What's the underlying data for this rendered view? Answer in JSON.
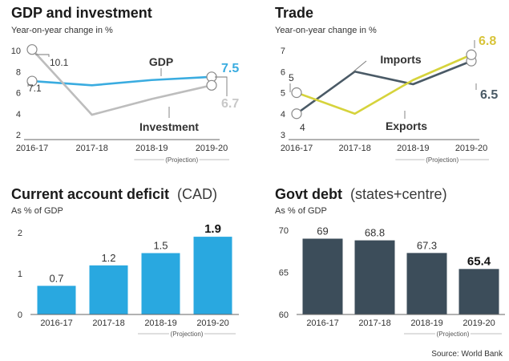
{
  "source": "Source: World Bank",
  "colors": {
    "gdp": "#3aace0",
    "investment": "#bdbdbd",
    "imports": "#4a5a66",
    "exports": "#d6d33c",
    "cad_bar": "#29a8e0",
    "debt_bar": "#3c4d5a",
    "highlight_gdp": "#3aace0",
    "highlight_investment": "#c8c8c8",
    "highlight_exports": "#d8c43a",
    "highlight_imports": "#4a5a66"
  },
  "chart_data": [
    {
      "type": "line",
      "title": "GDP and investment",
      "subtitle": "Year-on-year change in %",
      "categories": [
        "2016-17",
        "2017-18",
        "2018-19",
        "2019-20"
      ],
      "projection_label": "(Projection)",
      "ylim": [
        2,
        10
      ],
      "yticks": [
        2,
        4,
        6,
        8,
        10
      ],
      "series": [
        {
          "name": "GDP",
          "values": [
            7.1,
            6.7,
            7.2,
            7.5
          ],
          "start_label": "7.1",
          "end_label": "7.5"
        },
        {
          "name": "Investment",
          "values": [
            10.1,
            3.9,
            5.4,
            6.7
          ],
          "start_label": "10.1",
          "end_label": "6.7"
        }
      ]
    },
    {
      "type": "line",
      "title": "Trade",
      "subtitle": "Year-on-year change in %",
      "categories": [
        "2016-17",
        "2017-18",
        "2018-19",
        "2019-20"
      ],
      "projection_label": "(Projection)",
      "ylim": [
        3,
        7
      ],
      "yticks": [
        3,
        4,
        5,
        6,
        7
      ],
      "series": [
        {
          "name": "Imports",
          "values": [
            4.0,
            6.0,
            5.4,
            6.5
          ],
          "start_label": "4",
          "end_label": "6.5"
        },
        {
          "name": "Exports",
          "values": [
            5.0,
            4.0,
            5.6,
            6.8
          ],
          "start_label": "5",
          "end_label": "6.8"
        }
      ]
    },
    {
      "type": "bar",
      "title": "Current account deficit",
      "title_suffix": "(CAD)",
      "subtitle": "As % of GDP",
      "categories": [
        "2016-17",
        "2017-18",
        "2018-19",
        "2019-20"
      ],
      "projection_label": "(Projection)",
      "values": [
        0.7,
        1.2,
        1.5,
        1.9
      ],
      "value_labels": [
        "0.7",
        "1.2",
        "1.5",
        "1.9"
      ],
      "ylim": [
        0,
        2
      ],
      "yticks": [
        0,
        1,
        2
      ]
    },
    {
      "type": "bar",
      "title": "Govt debt",
      "title_suffix": "(states+centre)",
      "subtitle": "As % of GDP",
      "categories": [
        "2016-17",
        "2017-18",
        "2018-19",
        "2019-20"
      ],
      "projection_label": "(Projection)",
      "values": [
        69,
        68.8,
        67.3,
        65.4
      ],
      "value_labels": [
        "69",
        "68.8",
        "67.3",
        "65.4"
      ],
      "ylim": [
        60,
        70
      ],
      "yticks": [
        60,
        65,
        70
      ]
    }
  ]
}
